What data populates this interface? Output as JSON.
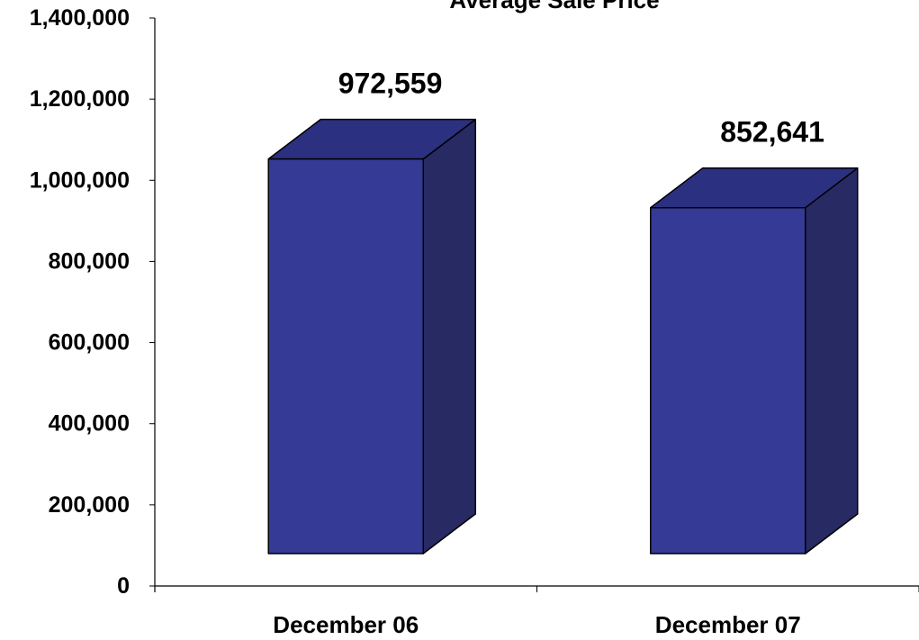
{
  "chart_data": {
    "type": "bar",
    "title": "Average Sale Price",
    "categories": [
      "December 06",
      "December 07"
    ],
    "values": [
      972559,
      852641
    ],
    "data_labels": [
      "972,559",
      "852,641"
    ],
    "ylim": [
      0,
      1400000
    ],
    "yticks": [
      0,
      200000,
      400000,
      600000,
      800000,
      1000000,
      1200000,
      1400000
    ],
    "ytick_labels": [
      "0",
      "200,000",
      "400,000",
      "600,000",
      "800,000",
      "1,000,000",
      "1,200,000",
      "1,400,000"
    ],
    "grid": false,
    "legend": "none",
    "style": "3d-column",
    "colors": {
      "bar_front": "#353A96",
      "bar_top": "#2C3080",
      "bar_side": "#272A63",
      "outline": "#000000",
      "axis": "#000000",
      "text": "#000000"
    }
  }
}
